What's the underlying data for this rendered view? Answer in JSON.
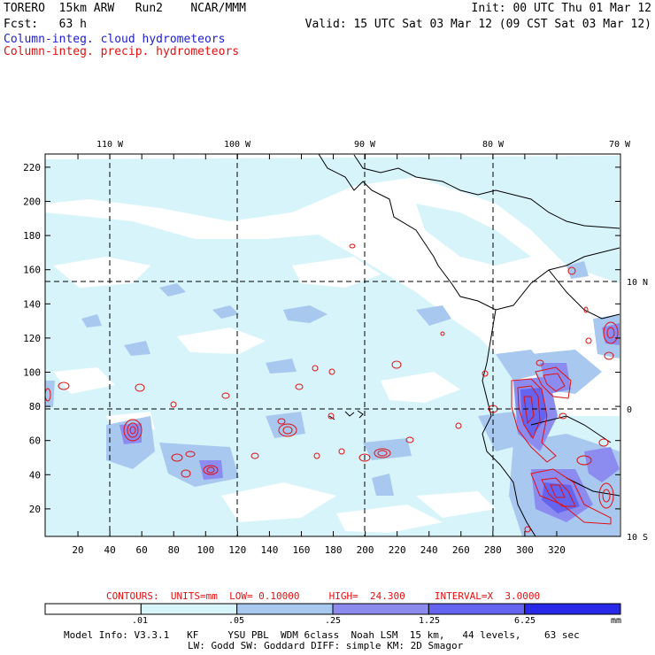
{
  "header": {
    "left_line1": "TORERO  15km ARW   Run2    NCAR/MMM",
    "left_line2": "Fcst:   63 h",
    "right_line1": "Init: 00 UTC Thu 01 Mar 12",
    "right_line2": "Valid: 15 UTC Sat 03 Mar 12 (09 CST Sat 03 Mar 12)",
    "legend_cloud": "Column-integ. cloud hydrometeors",
    "legend_precip": "Column-integ. precip. hydrometeors"
  },
  "map": {
    "lon_labels": [
      "110 W",
      "100 W",
      "90 W",
      "80 W",
      "70 W"
    ],
    "lat_labels": [
      "10 N",
      "0",
      "10 S"
    ],
    "y_ticks": [
      "20",
      "40",
      "60",
      "80",
      "100",
      "120",
      "140",
      "160",
      "180",
      "200",
      "220"
    ],
    "x_ticks": [
      "20",
      "40",
      "60",
      "80",
      "100",
      "120",
      "140",
      "160",
      "180",
      "200",
      "220",
      "240",
      "260",
      "280",
      "300",
      "320"
    ]
  },
  "contour_info": {
    "text": "CONTOURS:  UNITS=mm  LOW= 0.10000     HIGH=  24.300     INTERVAL=X  3.0000"
  },
  "colorbar": {
    "labels": [
      ".01",
      ".05",
      ".25",
      "1.25",
      "6.25"
    ],
    "unit": "mm",
    "colors": [
      "#ffffff",
      "#d8f4fb",
      "#a8c8f0",
      "#8c8cf0",
      "#6464f0",
      "#2828e8"
    ]
  },
  "footer": {
    "line1": "Model Info: V3.3.1   KF     YSU PBL  WDM 6class  Noah LSM  15 km,   44 levels,    63 sec",
    "line2": "LW: Godd SW: Goddard DIFF: simple KM: 2D Smagor"
  }
}
